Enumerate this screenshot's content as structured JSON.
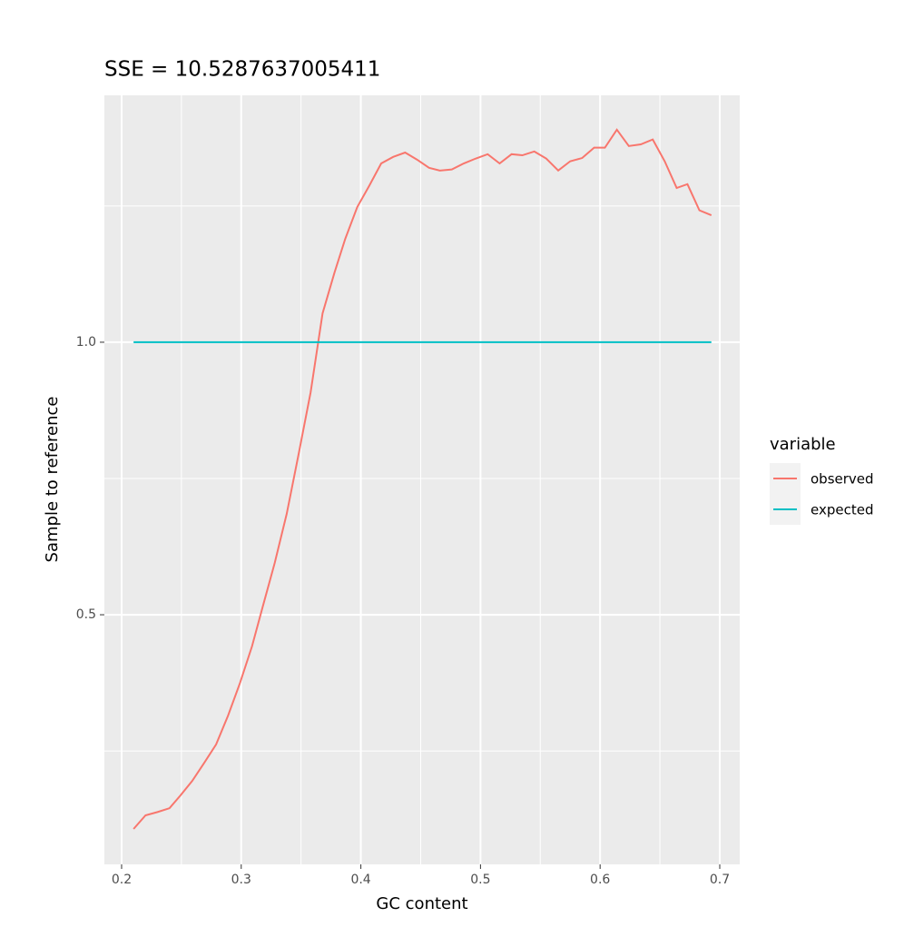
{
  "chart_data": {
    "type": "line",
    "title": "SSE = 10.5287637005411",
    "x_label": "GC content",
    "y_label": "Sample to reference",
    "legend_title": "variable",
    "legend_position": "right",
    "grid": true,
    "minor_grid": true,
    "xlim": [
      0.1856,
      0.7167
    ],
    "ylim": [
      0.042,
      1.453
    ],
    "xticks": [
      0.2,
      0.3,
      0.4,
      0.5,
      0.6,
      0.7
    ],
    "yticks": [
      0.5,
      {
        "value": 1,
        "label": "1.0"
      }
    ],
    "series": [
      {
        "name": "observed",
        "color": "#F8766D",
        "x": [
          0.21,
          0.22,
          0.23,
          0.24,
          0.249,
          0.259,
          0.269,
          0.279,
          0.289,
          0.299,
          0.309,
          0.318,
          0.328,
          0.338,
          0.348,
          0.358,
          0.368,
          0.378,
          0.387,
          0.397,
          0.407,
          0.417,
          0.427,
          0.437,
          0.447,
          0.457,
          0.466,
          0.476,
          0.486,
          0.496,
          0.506,
          0.516,
          0.526,
          0.535,
          0.545,
          0.555,
          0.565,
          0.575,
          0.585,
          0.595,
          0.604,
          0.614,
          0.624,
          0.634,
          0.644,
          0.654,
          0.664,
          0.673,
          0.683,
          0.693
        ],
        "values": [
          0.107,
          0.132,
          0.138,
          0.145,
          0.168,
          0.195,
          0.228,
          0.262,
          0.315,
          0.375,
          0.442,
          0.515,
          0.595,
          0.685,
          0.795,
          0.908,
          1.053,
          1.128,
          1.19,
          1.248,
          1.287,
          1.328,
          1.34,
          1.348,
          1.335,
          1.32,
          1.315,
          1.317,
          1.328,
          1.337,
          1.345,
          1.328,
          1.345,
          1.343,
          1.35,
          1.337,
          1.315,
          1.332,
          1.338,
          1.357,
          1.357,
          1.39,
          1.36,
          1.363,
          1.372,
          1.332,
          1.283,
          1.29,
          1.242,
          1.233
        ]
      },
      {
        "name": "expected",
        "color": "#00BFC4",
        "x": [
          0.21,
          0.693
        ],
        "values": [
          1,
          1
        ]
      }
    ]
  }
}
